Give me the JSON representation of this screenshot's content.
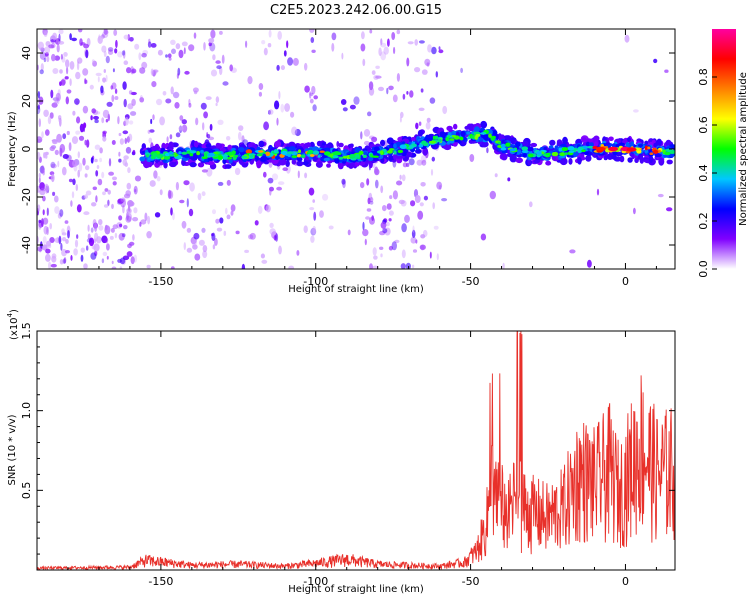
{
  "chart_data": [
    {
      "type": "heatmap",
      "title": "C2E5.2023.242.06.00.G15",
      "xlabel": "Height of straight line (km)",
      "ylabel": "Frequency (Hz)",
      "xlim": [
        -190,
        16
      ],
      "ylim": [
        -50,
        50
      ],
      "xticks": [
        -150,
        -100,
        -50,
        0
      ],
      "yticks": [
        -40,
        -20,
        0,
        20,
        40
      ],
      "colorbar": {
        "label": "Normalized spectral amplitude",
        "range": [
          0.0,
          1.0
        ],
        "ticks": [
          0.0,
          0.2,
          0.4,
          0.6,
          0.8
        ],
        "colors": [
          "#ffffff",
          "#8000ff",
          "#0000ff",
          "#00c8ff",
          "#00ff00",
          "#ffff00",
          "#ff8000",
          "#ff0000",
          "#ff00a0"
        ]
      },
      "ridge": {
        "x": [
          -156,
          -150,
          -140,
          -130,
          -120,
          -110,
          -100,
          -90,
          -80,
          -72,
          -65,
          -60,
          -55,
          -50,
          -45,
          -42,
          -40,
          -35,
          -30,
          -20,
          -10,
          0,
          10,
          16
        ],
        "y": [
          -2,
          -3,
          -2,
          -3,
          -2,
          -2,
          -2,
          -3,
          -2,
          0,
          3,
          4,
          5,
          6,
          6,
          5,
          1,
          0,
          -2,
          -1,
          0,
          0,
          -1,
          -1
        ]
      }
    },
    {
      "type": "line",
      "xlabel": "Height of straight line (km)",
      "ylabel": "SNR (10 * v/v)",
      "exponent_label": "(x10",
      "exponent_power": "4",
      "xlim": [
        -190,
        16
      ],
      "ylim": [
        0,
        1.5
      ],
      "xticks": [
        -150,
        -100,
        -50,
        0
      ],
      "yticks": [
        0.5,
        1.0,
        1.5
      ],
      "series": [
        {
          "color": "#e8302a",
          "envelope": {
            "x": [
              -190,
              -160,
              -155,
              -140,
              -125,
              -110,
              -100,
              -95,
              -90,
              -80,
              -70,
              -60,
              -52,
              -48,
              -45,
              -43,
              -41,
              -38,
              -35,
              -33,
              -30,
              -25,
              -20,
              -15,
              -10,
              -5,
              -2,
              5,
              10,
              16
            ],
            "y": [
              0.02,
              0.03,
              0.1,
              0.05,
              0.06,
              0.04,
              0.07,
              0.09,
              0.11,
              0.06,
              0.05,
              0.04,
              0.08,
              0.2,
              0.45,
              0.95,
              0.75,
              0.55,
              0.8,
              0.65,
              0.6,
              0.55,
              0.65,
              1.0,
              0.9,
              1.05,
              0.8,
              1.3,
              1.0,
              1.05
            ]
          }
        }
      ]
    }
  ]
}
